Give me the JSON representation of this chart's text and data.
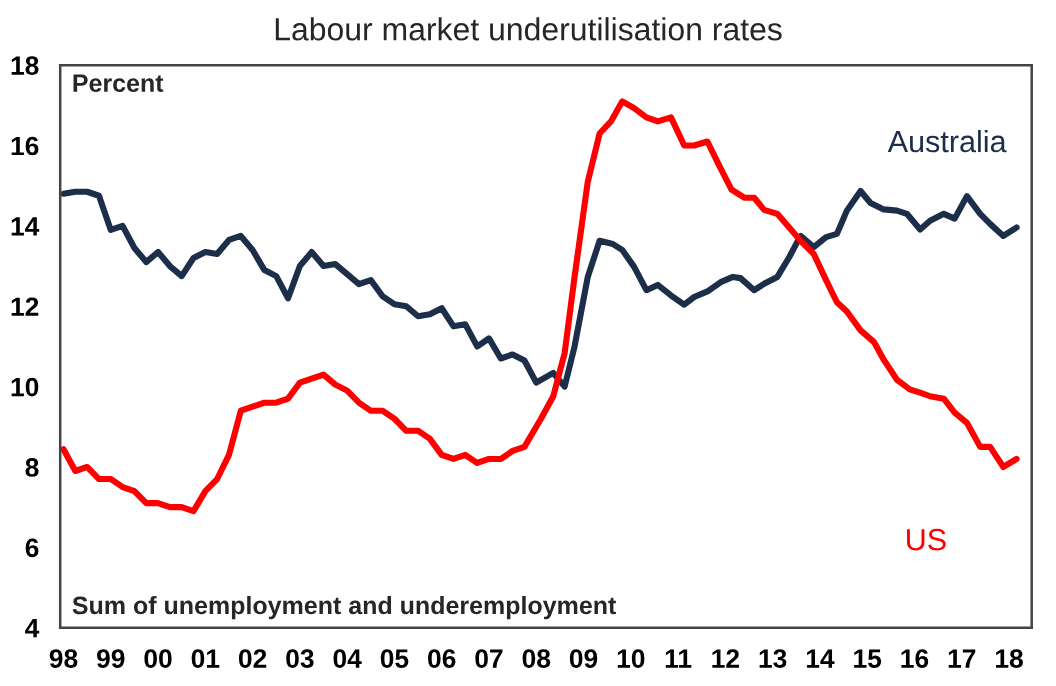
{
  "chart_data": {
    "type": "line",
    "title": "Labour market underutilisation rates",
    "annotations": [
      "Percent",
      "Sum of unemployment and underemployment"
    ],
    "xlim": [
      1997.93,
      2018.48
    ],
    "ylim": [
      4,
      18
    ],
    "yticks": [
      4,
      6,
      8,
      10,
      12,
      14,
      16,
      18
    ],
    "xticks": [
      {
        "value": 1998,
        "label": "98"
      },
      {
        "value": 1999,
        "label": "99"
      },
      {
        "value": 2000,
        "label": "00"
      },
      {
        "value": 2001,
        "label": "01"
      },
      {
        "value": 2002,
        "label": "02"
      },
      {
        "value": 2003,
        "label": "03"
      },
      {
        "value": 2004,
        "label": "04"
      },
      {
        "value": 2005,
        "label": "05"
      },
      {
        "value": 2006,
        "label": "06"
      },
      {
        "value": 2007,
        "label": "07"
      },
      {
        "value": 2008,
        "label": "08"
      },
      {
        "value": 2009,
        "label": "09"
      },
      {
        "value": 2010,
        "label": "10"
      },
      {
        "value": 2011,
        "label": "11"
      },
      {
        "value": 2012,
        "label": "12"
      },
      {
        "value": 2013,
        "label": "13"
      },
      {
        "value": 2014,
        "label": "14"
      },
      {
        "value": 2015,
        "label": "15"
      },
      {
        "value": 2016,
        "label": "16"
      },
      {
        "value": 2017,
        "label": "17"
      },
      {
        "value": 2018,
        "label": "18"
      }
    ],
    "grid": false,
    "legend": false,
    "marker": "none",
    "line_style": "solid",
    "series": [
      {
        "name": "Australia",
        "color": "#1c2e4a",
        "x": [
          1998.0,
          1998.25,
          1998.5,
          1998.75,
          1999.0,
          1999.25,
          1999.5,
          1999.75,
          2000.0,
          2000.25,
          2000.5,
          2000.75,
          2001.0,
          2001.25,
          2001.5,
          2001.75,
          2002.0,
          2002.25,
          2002.5,
          2002.75,
          2003.0,
          2003.25,
          2003.5,
          2003.75,
          2004.0,
          2004.25,
          2004.5,
          2004.75,
          2005.0,
          2005.25,
          2005.5,
          2005.75,
          2006.0,
          2006.25,
          2006.5,
          2006.75,
          2007.0,
          2007.25,
          2007.5,
          2007.75,
          2008.0,
          2008.36,
          2008.6,
          2008.81,
          2009.09,
          2009.34,
          2009.62,
          2009.82,
          2010.07,
          2010.33,
          2010.57,
          2010.85,
          2011.13,
          2011.34,
          2011.62,
          2011.9,
          2012.16,
          2012.32,
          2012.61,
          2012.82,
          2013.1,
          2013.35,
          2013.59,
          2013.87,
          2014.13,
          2014.36,
          2014.57,
          2014.86,
          2015.07,
          2015.35,
          2015.63,
          2015.84,
          2016.12,
          2016.33,
          2016.62,
          2016.85,
          2017.11,
          2017.39,
          2017.6,
          2017.88,
          2018.16
        ],
        "values": [
          14.8,
          14.85,
          14.85,
          14.75,
          13.9,
          14.0,
          13.45,
          13.1,
          13.35,
          13.0,
          12.75,
          13.2,
          13.35,
          13.3,
          13.65,
          13.75,
          13.4,
          12.9,
          12.75,
          12.2,
          13.0,
          13.35,
          13.0,
          13.05,
          12.8,
          12.55,
          12.65,
          12.25,
          12.05,
          12.0,
          11.75,
          11.8,
          11.95,
          11.5,
          11.55,
          11.0,
          11.2,
          10.7,
          10.8,
          10.65,
          10.1,
          10.34,
          10.0,
          11.0,
          12.73,
          13.63,
          13.55,
          13.4,
          12.98,
          12.4,
          12.53,
          12.27,
          12.04,
          12.23,
          12.37,
          12.6,
          12.73,
          12.7,
          12.4,
          12.56,
          12.73,
          13.22,
          13.75,
          13.47,
          13.72,
          13.8,
          14.38,
          14.87,
          14.57,
          14.41,
          14.38,
          14.3,
          13.91,
          14.13,
          14.3,
          14.18,
          14.74,
          14.3,
          14.05,
          13.75,
          13.96
        ]
      },
      {
        "name": "US",
        "color": "#ff0000",
        "x": [
          1998.0,
          1998.25,
          1998.5,
          1998.75,
          1999.0,
          1999.25,
          1999.5,
          1999.75,
          2000.0,
          2000.25,
          2000.5,
          2000.75,
          2001.0,
          2001.25,
          2001.5,
          2001.75,
          2002.0,
          2002.25,
          2002.5,
          2002.75,
          2003.0,
          2003.25,
          2003.5,
          2003.75,
          2004.0,
          2004.25,
          2004.5,
          2004.75,
          2005.0,
          2005.25,
          2005.5,
          2005.75,
          2006.0,
          2006.25,
          2006.5,
          2006.75,
          2007.0,
          2007.25,
          2007.5,
          2007.75,
          2008.1,
          2008.36,
          2008.6,
          2008.81,
          2009.09,
          2009.34,
          2009.58,
          2009.82,
          2010.07,
          2010.33,
          2010.57,
          2010.85,
          2011.13,
          2011.34,
          2011.62,
          2011.87,
          2012.13,
          2012.41,
          2012.61,
          2012.82,
          2013.1,
          2013.35,
          2013.59,
          2013.87,
          2014.13,
          2014.36,
          2014.57,
          2014.86,
          2015.15,
          2015.35,
          2015.63,
          2015.9,
          2016.12,
          2016.33,
          2016.62,
          2016.85,
          2017.11,
          2017.39,
          2017.6,
          2017.88,
          2018.16
        ],
        "values": [
          8.44,
          7.9,
          8.0,
          7.7,
          7.7,
          7.5,
          7.4,
          7.1,
          7.1,
          7.0,
          7.0,
          6.9,
          7.4,
          7.7,
          8.3,
          9.4,
          9.5,
          9.6,
          9.6,
          9.7,
          10.1,
          10.2,
          10.3,
          10.05,
          9.9,
          9.6,
          9.4,
          9.4,
          9.2,
          8.9,
          8.9,
          8.7,
          8.3,
          8.2,
          8.3,
          8.1,
          8.2,
          8.2,
          8.4,
          8.5,
          9.2,
          9.76,
          10.83,
          12.73,
          15.1,
          16.3,
          16.6,
          17.1,
          16.93,
          16.7,
          16.6,
          16.7,
          16.0,
          16.0,
          16.1,
          15.5,
          14.9,
          14.7,
          14.7,
          14.4,
          14.3,
          13.96,
          13.63,
          13.3,
          12.65,
          12.1,
          11.87,
          11.4,
          11.1,
          10.67,
          10.17,
          9.93,
          9.85,
          9.76,
          9.7,
          9.35,
          9.1,
          8.5,
          8.5,
          8.0,
          8.2
        ]
      }
    ]
  }
}
